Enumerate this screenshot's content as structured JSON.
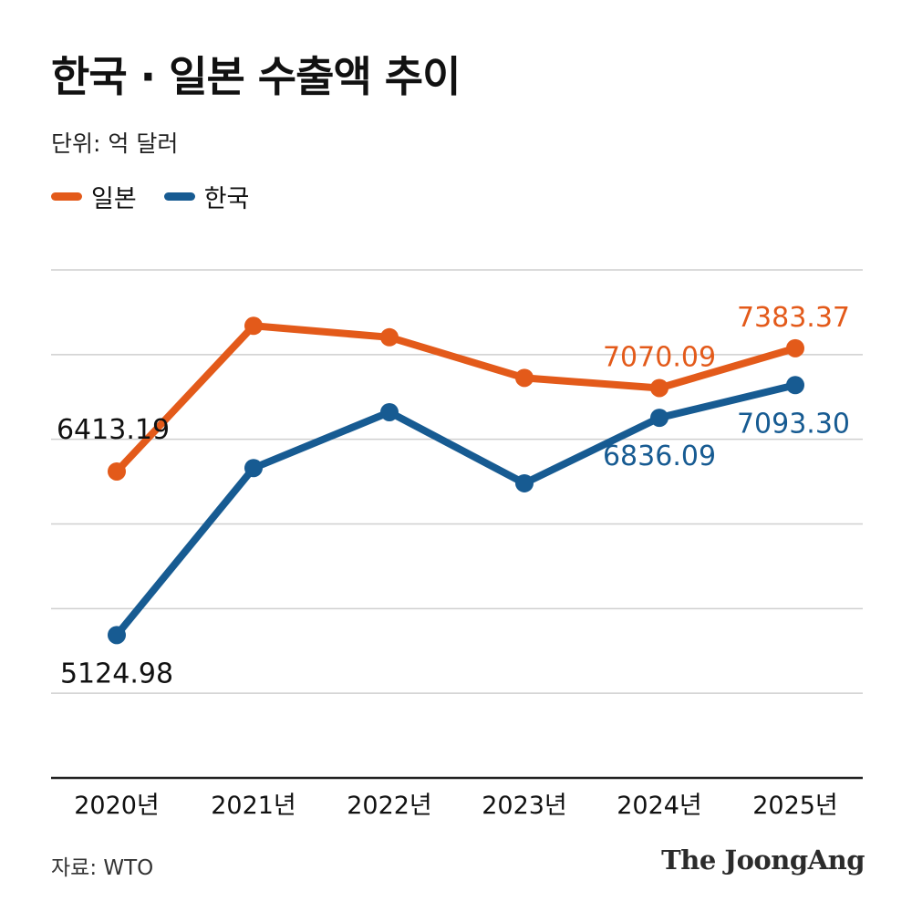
{
  "header": {
    "title": "한국 · 일본 수출액 추이",
    "unit": "단위: 억 달러"
  },
  "footer": {
    "source": "자료: WTO",
    "logo": "The JoongAng"
  },
  "colors": {
    "japan": "#e35a1a",
    "korea": "#175b92",
    "grid": "#cfcfcf",
    "axis": "#222222"
  },
  "chart_data": {
    "type": "line",
    "title": "한국 · 일본 수출액 추이",
    "ylabel": "단위: 억 달러",
    "xlabel": "",
    "categories": [
      "2020년",
      "2021년",
      "2022년",
      "2023년",
      "2024년",
      "2025년"
    ],
    "ylim": [
      4000,
      8000
    ],
    "grid": true,
    "legend_position": "top-left",
    "series": [
      {
        "name": "일본",
        "key": "japan",
        "values": [
          6413.19,
          7560,
          7470,
          7150,
          7070.09,
          7383.37
        ],
        "labels": [
          {
            "index": 0,
            "text": "6413.19",
            "placement": "above-left"
          },
          {
            "index": 4,
            "text": "7070.09",
            "placement": "above"
          },
          {
            "index": 5,
            "text": "7383.37",
            "placement": "above"
          }
        ]
      },
      {
        "name": "한국",
        "key": "korea",
        "values": [
          5124.98,
          6440,
          6880,
          6320,
          6836.09,
          7093.3
        ],
        "labels": [
          {
            "index": 0,
            "text": "5124.98",
            "placement": "below"
          },
          {
            "index": 4,
            "text": "6836.09",
            "placement": "below"
          },
          {
            "index": 5,
            "text": "7093.30",
            "placement": "below"
          }
        ]
      }
    ]
  }
}
